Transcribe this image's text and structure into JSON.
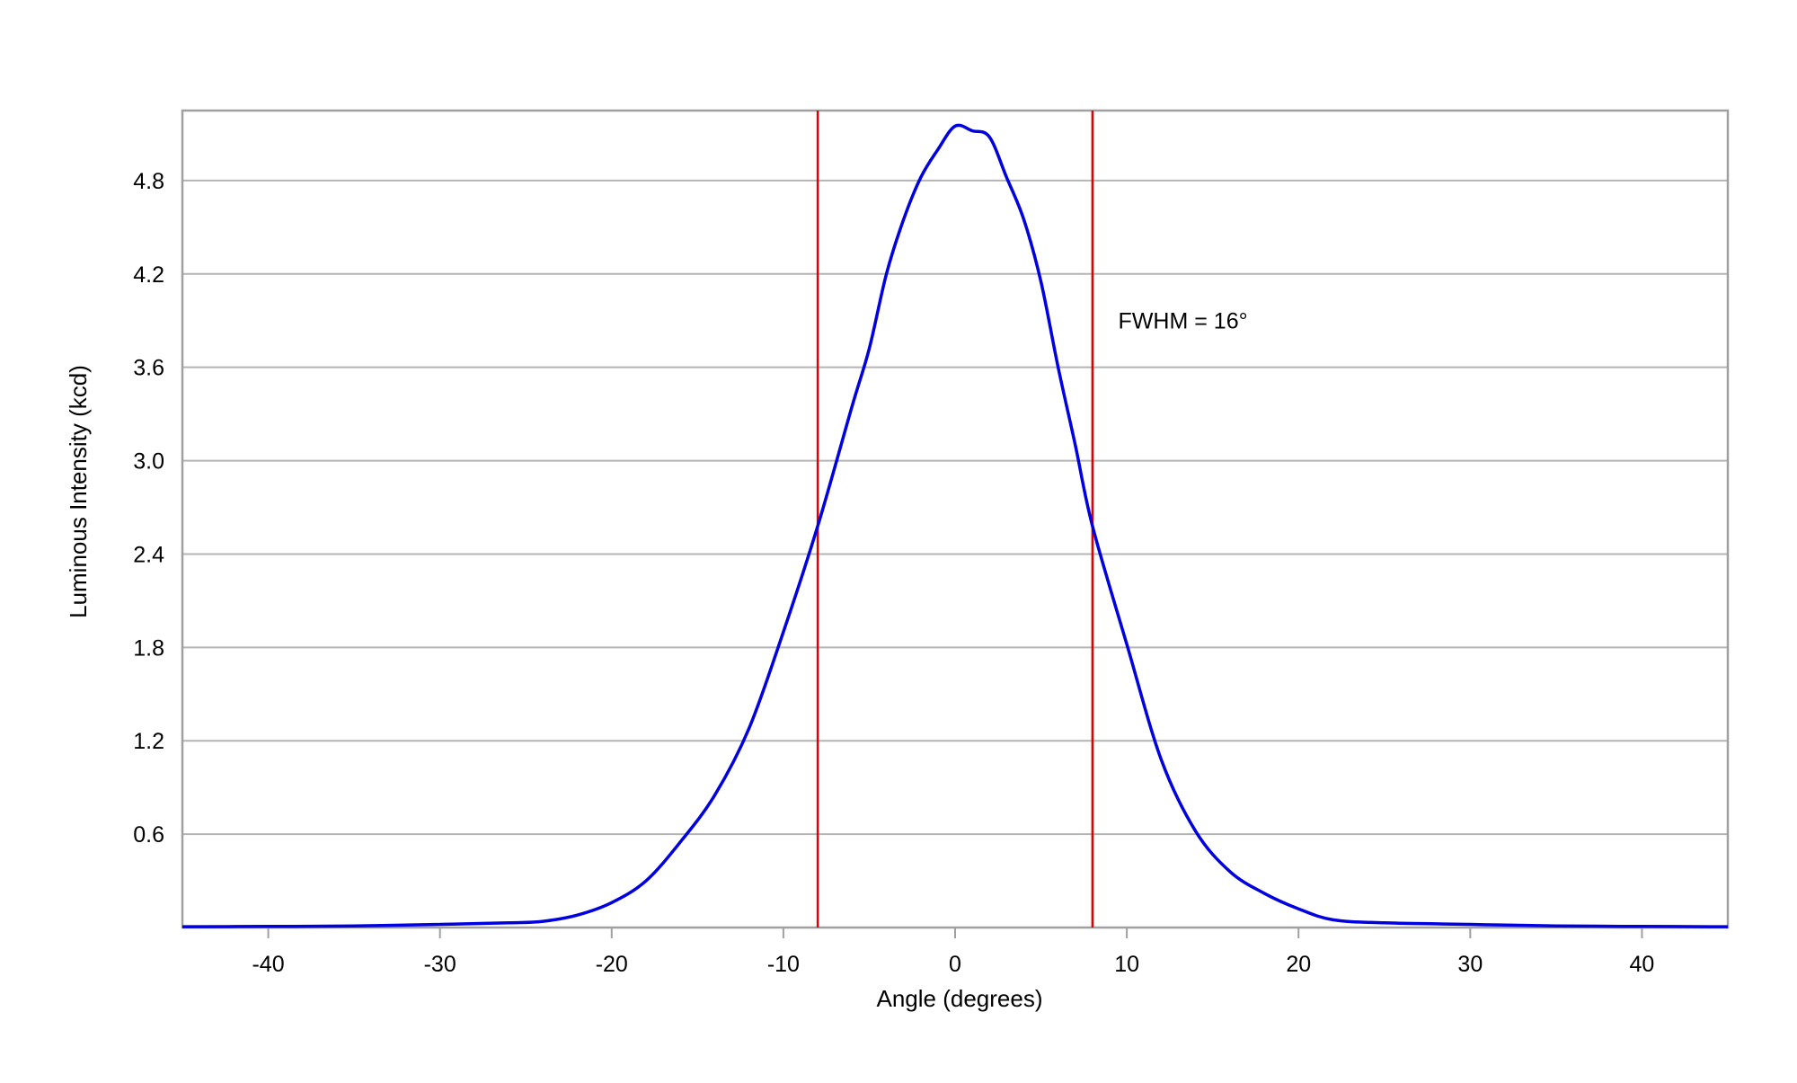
{
  "chart_data": {
    "type": "line",
    "title": "",
    "xlabel": "Angle (degrees)",
    "ylabel": "Luminous Intensity (kcd)",
    "xlim": [
      -45,
      45
    ],
    "ylim": [
      0,
      5.25
    ],
    "xticks": [
      -40,
      -30,
      -20,
      -10,
      0,
      10,
      20,
      30,
      40
    ],
    "xtick_labels": [
      "-40",
      "-30",
      "-20",
      "-10",
      "0",
      "10",
      "20",
      "30",
      "40"
    ],
    "yticks": [
      0.6,
      1.2,
      1.8,
      2.4,
      3.0,
      3.6,
      4.2,
      4.8
    ],
    "ytick_labels": [
      "0.6",
      "1.2",
      "1.8",
      "2.4",
      "3.0",
      "3.6",
      "4.2",
      "4.8"
    ],
    "grid": "horizontal",
    "series": [
      {
        "color": "#0000e0",
        "x": [
          -45,
          -40,
          -35,
          -30,
          -26,
          -24,
          -22,
          -20,
          -18,
          -16,
          -14,
          -12,
          -10,
          -8,
          -6,
          -5,
          -4,
          -3,
          -2,
          -1,
          0,
          1,
          2,
          3,
          4,
          5,
          6,
          7,
          8,
          10,
          12,
          14,
          16,
          18,
          20,
          22,
          25,
          30,
          35,
          40,
          45
        ],
        "y": [
          0.005,
          0.007,
          0.01,
          0.02,
          0.03,
          0.04,
          0.08,
          0.16,
          0.3,
          0.55,
          0.85,
          1.28,
          1.9,
          2.58,
          3.35,
          3.72,
          4.2,
          4.55,
          4.82,
          5.0,
          5.15,
          5.12,
          5.08,
          4.82,
          4.55,
          4.15,
          3.6,
          3.1,
          2.58,
          1.82,
          1.08,
          0.62,
          0.36,
          0.22,
          0.12,
          0.05,
          0.03,
          0.02,
          0.01,
          0.007,
          0.005
        ]
      }
    ],
    "reference_lines": [
      {
        "axis": "x",
        "value": -8,
        "color": "#e00000"
      },
      {
        "axis": "x",
        "value": 8,
        "color": "#e00000"
      }
    ],
    "annotations": [
      {
        "text": "FWHM = 16°",
        "x": 9.5,
        "y": 3.9
      }
    ]
  }
}
